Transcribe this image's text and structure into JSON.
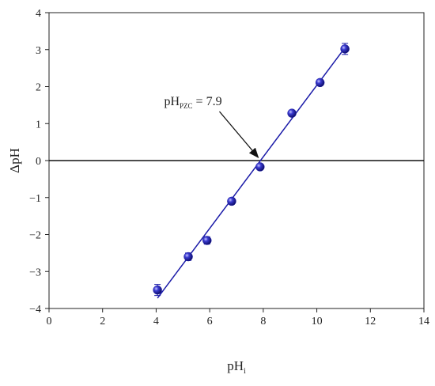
{
  "chart_data": {
    "type": "scatter",
    "xlabel": {
      "text": "pH",
      "sub": "i"
    },
    "ylabel": "ΔpH",
    "xlim": [
      0,
      14
    ],
    "xticks": [
      0,
      2,
      4,
      6,
      8,
      10,
      12,
      14
    ],
    "ylim": [
      -4,
      4
    ],
    "yticks": [
      -4,
      -3,
      -2,
      -1,
      0,
      1,
      2,
      3,
      4
    ],
    "hline": 0,
    "series": [
      {
        "color": "#1a1aa8",
        "x": [
          4.05,
          5.2,
          5.9,
          6.82,
          7.88,
          9.07,
          10.12,
          11.05
        ],
        "values": [
          -3.5,
          -2.6,
          -2.16,
          -1.1,
          -0.17,
          1.28,
          2.11,
          3.02
        ],
        "errors": [
          0.15,
          0.1,
          0.1,
          0.08,
          0.08,
          0.08,
          0.08,
          0.15
        ]
      }
    ],
    "fit": {
      "color": "#1a1aa8",
      "x": [
        4.05,
        11.1
      ],
      "values": [
        -3.72,
        3.1
      ]
    },
    "annotation": {
      "text": "pH",
      "sub": "PZC",
      "rest": " = 7.9",
      "xy": [
        7.9,
        0
      ]
    }
  }
}
